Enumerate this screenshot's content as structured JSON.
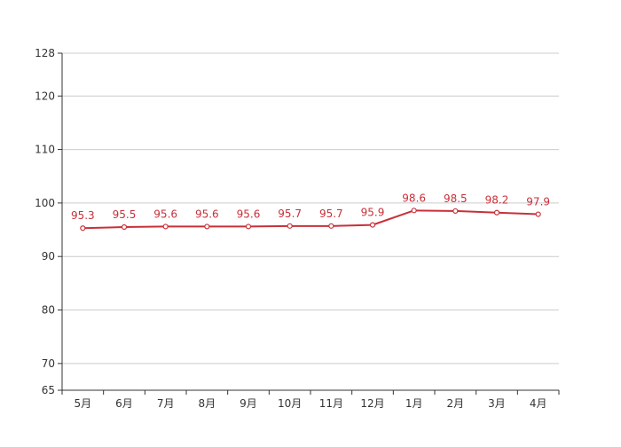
{
  "chart_data": {
    "type": "line",
    "categories": [
      "5月",
      "6月",
      "7月",
      "8月",
      "9月",
      "10月",
      "11月",
      "12月",
      "1月",
      "2月",
      "3月",
      "4月"
    ],
    "series": [
      {
        "values": [
          95.3,
          95.5,
          95.6,
          95.6,
          95.6,
          95.7,
          95.7,
          95.9,
          98.6,
          98.5,
          98.2,
          97.9
        ],
        "color": "#c8303a"
      }
    ],
    "data_labels": [
      "95.3",
      "95.5",
      "95.6",
      "95.6",
      "95.6",
      "95.7",
      "95.7",
      "95.9",
      "98.6",
      "98.5",
      "98.2",
      "97.9"
    ],
    "y_ticks": [
      65,
      70,
      80,
      90,
      100,
      110,
      120,
      128
    ],
    "y_tick_labels": [
      "65",
      "70",
      "80",
      "90",
      "100",
      "110",
      "120",
      "128"
    ],
    "ylim": [
      65,
      128
    ],
    "grid": true,
    "legend": "none",
    "marker": "hollow-circle"
  }
}
